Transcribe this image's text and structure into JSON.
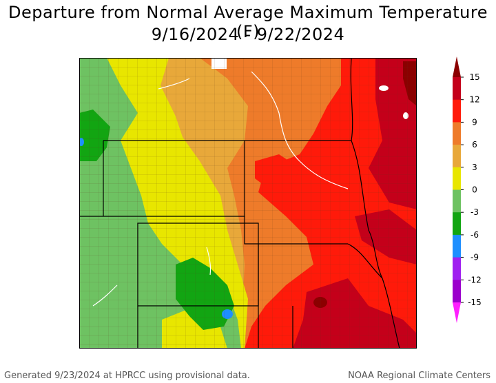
{
  "title_line1": "Departure from Normal Average Maximum Temperature (F)",
  "title_line2": "9/16/2024 - 9/22/2024",
  "footer_left": "Generated 9/23/2024 at HPRCC using provisional data.",
  "footer_right": "NOAA Regional Climate Centers",
  "legend": {
    "ticks": [
      "15",
      "12",
      "9",
      "6",
      "3",
      "0",
      "-3",
      "-6",
      "-9",
      "-12",
      "-15"
    ],
    "bins": [
      {
        "range": "> 15",
        "color": "#8b0000"
      },
      {
        "range": "12 to 15",
        "color": "#c4001a"
      },
      {
        "range": "9 to 12",
        "color": "#ff1a0a"
      },
      {
        "range": "6 to 9",
        "color": "#ee7b2a"
      },
      {
        "range": "3 to 6",
        "color": "#e8a83a"
      },
      {
        "range": "0 to 3",
        "color": "#e8e600"
      },
      {
        "range": "-3 to 0",
        "color": "#6ec262"
      },
      {
        "range": "-6 to -3",
        "color": "#12a512"
      },
      {
        "range": "-9 to -6",
        "color": "#1e8fff"
      },
      {
        "range": "-12 to -9",
        "color": "#a020f0"
      },
      {
        "range": "-15 to -12",
        "color": "#9b00cc"
      },
      {
        "range": "< -15",
        "color": "#ff20ff"
      }
    ]
  }
}
